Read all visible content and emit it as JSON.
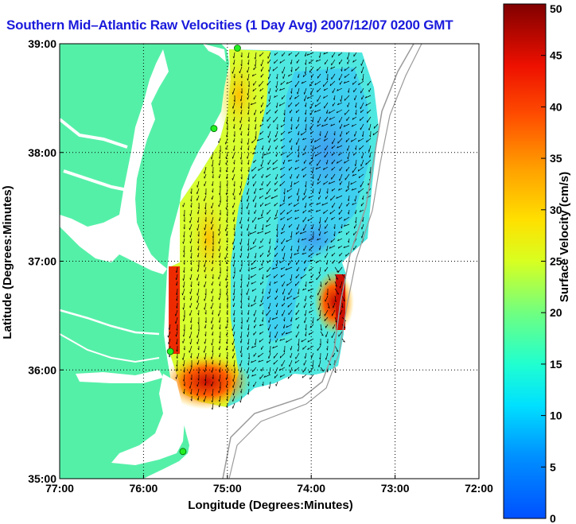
{
  "title": "Southern Mid–Atlantic Raw Velocities (1 Day Avg) 2007/12/07 0200 GMT",
  "map": {
    "xlabel": "Longitude (Degrees:Minutes)",
    "ylabel": "Latitude (Degrees:Minutes)",
    "x_ticks": [
      "77:00",
      "76:00",
      "75:00",
      "74:00",
      "73:00",
      "72:00"
    ],
    "y_ticks": [
      "39:00",
      "38:00",
      "37:00",
      "36:00",
      "35:00"
    ],
    "lon_range": [
      -77,
      -72
    ],
    "lat_range": [
      35,
      39
    ],
    "land_color": "#55f0a8",
    "station_color": "#22ee22",
    "grid": true,
    "stations": [
      {
        "lon": -74.88,
        "lat": 38.96
      },
      {
        "lon": -75.16,
        "lat": 38.22
      },
      {
        "lon": -75.68,
        "lat": 36.17
      },
      {
        "lon": -75.53,
        "lat": 35.25
      }
    ]
  },
  "colorbar": {
    "label": "Surface Velocity (cm/s)",
    "ticks": [
      "0",
      "5",
      "10",
      "15",
      "20",
      "25",
      "30",
      "35",
      "40",
      "45",
      "50"
    ],
    "range": [
      0,
      50
    ]
  }
}
